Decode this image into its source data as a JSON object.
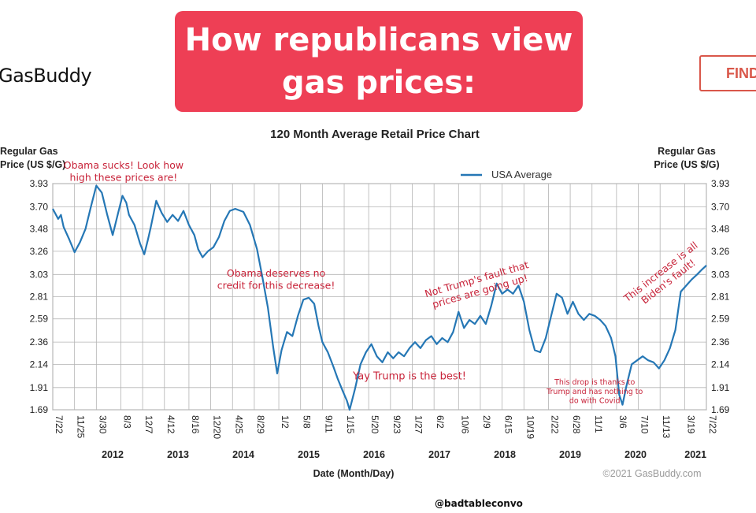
{
  "banner": {
    "line1": "How republicans view",
    "line2": "gas prices:"
  },
  "header": {
    "logo": "GasBuddy",
    "find_button": "FIND"
  },
  "credit": "@badtableconvo",
  "colors": {
    "banner": "#ee3f55",
    "series": "#2577b5",
    "annotation": "#c8243a"
  },
  "chart_data": {
    "type": "line",
    "title": "120 Month Average Retail Price Chart",
    "ylabel_left": [
      "Regular Gas",
      "Price (US $/G)"
    ],
    "ylabel_right": [
      "Regular Gas",
      "Price (US $/G)"
    ],
    "xlabel": "Date (Month/Day)",
    "copyright": "©2021 GasBuddy.com",
    "ylim": [
      1.69,
      3.93
    ],
    "y_ticks": [
      "3.93",
      "3.70",
      "3.48",
      "3.26",
      "3.03",
      "2.81",
      "2.59",
      "2.36",
      "2.14",
      "1.91",
      "1.69"
    ],
    "grid": true,
    "legend": {
      "label": "USA Average",
      "placement": "top-right"
    },
    "xlim": [
      0,
      120
    ],
    "x_ticks": [
      {
        "label": "7/22",
        "x": 0
      },
      {
        "label": "11/25",
        "x": 4
      },
      {
        "label": "3/30",
        "x": 8
      },
      {
        "label": "8/3",
        "x": 12.5
      },
      {
        "label": "12/7",
        "x": 16.5
      },
      {
        "label": "4/12",
        "x": 20.5
      },
      {
        "label": "8/16",
        "x": 25
      },
      {
        "label": "12/20",
        "x": 29
      },
      {
        "label": "4/25",
        "x": 33
      },
      {
        "label": "8/29",
        "x": 37
      },
      {
        "label": "1/2",
        "x": 41.5
      },
      {
        "label": "5/8",
        "x": 45.5
      },
      {
        "label": "9/11",
        "x": 49.5
      },
      {
        "label": "1/15",
        "x": 53.5
      },
      {
        "label": "5/20",
        "x": 58
      },
      {
        "label": "9/23",
        "x": 62
      },
      {
        "label": "1/27",
        "x": 66
      },
      {
        "label": "6/2",
        "x": 70
      },
      {
        "label": "10/6",
        "x": 74.5
      },
      {
        "label": "2/9",
        "x": 78.5
      },
      {
        "label": "6/15",
        "x": 82.5
      },
      {
        "label": "10/19",
        "x": 86.5
      },
      {
        "label": "2/22",
        "x": 91
      },
      {
        "label": "6/28",
        "x": 95
      },
      {
        "label": "11/1",
        "x": 99
      },
      {
        "label": "3/6",
        "x": 103.5
      },
      {
        "label": "7/10",
        "x": 107.5
      },
      {
        "label": "11/13",
        "x": 111.5
      },
      {
        "label": "3/19",
        "x": 116
      },
      {
        "label": "7/22",
        "x": 120
      }
    ],
    "year_labels": [
      {
        "label": "2012",
        "x": 11
      },
      {
        "label": "2013",
        "x": 23
      },
      {
        "label": "2014",
        "x": 35
      },
      {
        "label": "2015",
        "x": 47
      },
      {
        "label": "2016",
        "x": 59
      },
      {
        "label": "2017",
        "x": 71
      },
      {
        "label": "2018",
        "x": 83
      },
      {
        "label": "2019",
        "x": 95
      },
      {
        "label": "2020",
        "x": 107
      },
      {
        "label": "2021",
        "x": 118
      }
    ],
    "series": [
      {
        "name": "USA Average",
        "points": [
          [
            0,
            3.68
          ],
          [
            1,
            3.58
          ],
          [
            1.5,
            3.62
          ],
          [
            2,
            3.5
          ],
          [
            3,
            3.38
          ],
          [
            4,
            3.25
          ],
          [
            5,
            3.35
          ],
          [
            6,
            3.48
          ],
          [
            7,
            3.7
          ],
          [
            8,
            3.91
          ],
          [
            9,
            3.84
          ],
          [
            10,
            3.62
          ],
          [
            11,
            3.42
          ],
          [
            12,
            3.64
          ],
          [
            12.8,
            3.81
          ],
          [
            13.5,
            3.74
          ],
          [
            14,
            3.62
          ],
          [
            15,
            3.52
          ],
          [
            16,
            3.34
          ],
          [
            16.8,
            3.23
          ],
          [
            17.5,
            3.38
          ],
          [
            18,
            3.5
          ],
          [
            19,
            3.76
          ],
          [
            20,
            3.64
          ],
          [
            21,
            3.55
          ],
          [
            22,
            3.62
          ],
          [
            23,
            3.56
          ],
          [
            24,
            3.66
          ],
          [
            25,
            3.52
          ],
          [
            26,
            3.42
          ],
          [
            26.7,
            3.28
          ],
          [
            27.5,
            3.2
          ],
          [
            28.5,
            3.26
          ],
          [
            29.5,
            3.3
          ],
          [
            30.5,
            3.4
          ],
          [
            31.5,
            3.56
          ],
          [
            32.5,
            3.66
          ],
          [
            33.5,
            3.68
          ],
          [
            35,
            3.65
          ],
          [
            36.2,
            3.52
          ],
          [
            37.5,
            3.28
          ],
          [
            38.5,
            3.0
          ],
          [
            39.5,
            2.7
          ],
          [
            40.5,
            2.3
          ],
          [
            41.2,
            2.05
          ],
          [
            42,
            2.28
          ],
          [
            43,
            2.46
          ],
          [
            44,
            2.42
          ],
          [
            45,
            2.62
          ],
          [
            46,
            2.78
          ],
          [
            47,
            2.8
          ],
          [
            48,
            2.74
          ],
          [
            48.8,
            2.52
          ],
          [
            49.5,
            2.36
          ],
          [
            50.5,
            2.26
          ],
          [
            51.5,
            2.12
          ],
          [
            52.3,
            2.0
          ],
          [
            53.2,
            1.88
          ],
          [
            54,
            1.78
          ],
          [
            54.5,
            1.69
          ],
          [
            55.5,
            1.9
          ],
          [
            56.5,
            2.14
          ],
          [
            57.5,
            2.26
          ],
          [
            58.5,
            2.34
          ],
          [
            59.5,
            2.22
          ],
          [
            60.5,
            2.16
          ],
          [
            61.5,
            2.26
          ],
          [
            62.5,
            2.2
          ],
          [
            63.5,
            2.26
          ],
          [
            64.5,
            2.22
          ],
          [
            65.5,
            2.3
          ],
          [
            66.5,
            2.36
          ],
          [
            67.5,
            2.3
          ],
          [
            68.5,
            2.38
          ],
          [
            69.5,
            2.42
          ],
          [
            70.5,
            2.34
          ],
          [
            71.5,
            2.4
          ],
          [
            72.5,
            2.36
          ],
          [
            73.5,
            2.46
          ],
          [
            74.5,
            2.66
          ],
          [
            75.5,
            2.5
          ],
          [
            76.5,
            2.58
          ],
          [
            77.5,
            2.54
          ],
          [
            78.5,
            2.62
          ],
          [
            79.5,
            2.54
          ],
          [
            80.5,
            2.72
          ],
          [
            81.5,
            2.94
          ],
          [
            82.5,
            2.84
          ],
          [
            83.5,
            2.88
          ],
          [
            84.5,
            2.84
          ],
          [
            85.5,
            2.92
          ],
          [
            86.5,
            2.76
          ],
          [
            87.5,
            2.48
          ],
          [
            88.5,
            2.28
          ],
          [
            89.5,
            2.26
          ],
          [
            90.5,
            2.4
          ],
          [
            91.5,
            2.62
          ],
          [
            92.5,
            2.84
          ],
          [
            93.5,
            2.8
          ],
          [
            94.5,
            2.64
          ],
          [
            95.5,
            2.76
          ],
          [
            96.5,
            2.64
          ],
          [
            97.5,
            2.58
          ],
          [
            98.5,
            2.64
          ],
          [
            99.5,
            2.62
          ],
          [
            100.5,
            2.58
          ],
          [
            101.5,
            2.52
          ],
          [
            102.5,
            2.4
          ],
          [
            103.3,
            2.22
          ],
          [
            104,
            1.84
          ],
          [
            104.6,
            1.74
          ],
          [
            105.3,
            1.92
          ],
          [
            106.3,
            2.14
          ],
          [
            107.3,
            2.18
          ],
          [
            108.3,
            2.22
          ],
          [
            109.3,
            2.18
          ],
          [
            110.3,
            2.16
          ],
          [
            111.3,
            2.1
          ],
          [
            112.3,
            2.18
          ],
          [
            113.3,
            2.3
          ],
          [
            114.3,
            2.48
          ],
          [
            115.3,
            2.86
          ],
          [
            116.3,
            2.92
          ],
          [
            117.3,
            2.98
          ],
          [
            118.3,
            3.03
          ],
          [
            119.2,
            3.08
          ],
          [
            120,
            3.12
          ]
        ]
      }
    ],
    "annotations": [
      {
        "id": "obama-sucks",
        "lines": [
          "Obama sucks! Look how",
          "high these prices are!"
        ],
        "at": [
          13,
          4.08
        ],
        "rotate": 0,
        "size": 12.5
      },
      {
        "id": "obama-credit",
        "lines": [
          "Obama deserves no",
          "credit for this decrease!"
        ],
        "at": [
          41,
          3.01
        ],
        "rotate": 0,
        "size": 12.5
      },
      {
        "id": "yay-trump",
        "lines": [
          "Yay Trump is the best!"
        ],
        "at": [
          65.5,
          1.99
        ],
        "rotate": 0,
        "size": 13
      },
      {
        "id": "not-trumps-fault",
        "lines": [
          "Not Trump's fault that",
          "prices are going up!"
        ],
        "at": [
          78,
          2.95
        ],
        "rotate": -16,
        "size": 12.5
      },
      {
        "id": "drop-thanks-trump",
        "lines": [
          "This drop is thanks to",
          "Trump and has nothing to",
          "do with Covid"
        ],
        "at": [
          99.5,
          1.94
        ],
        "rotate": 0,
        "size": 9.5
      },
      {
        "id": "biden-fault",
        "lines": [
          "This increase is all",
          "Biden's fault!"
        ],
        "at": [
          112,
          3.03
        ],
        "rotate": -38,
        "size": 12.5
      }
    ]
  }
}
